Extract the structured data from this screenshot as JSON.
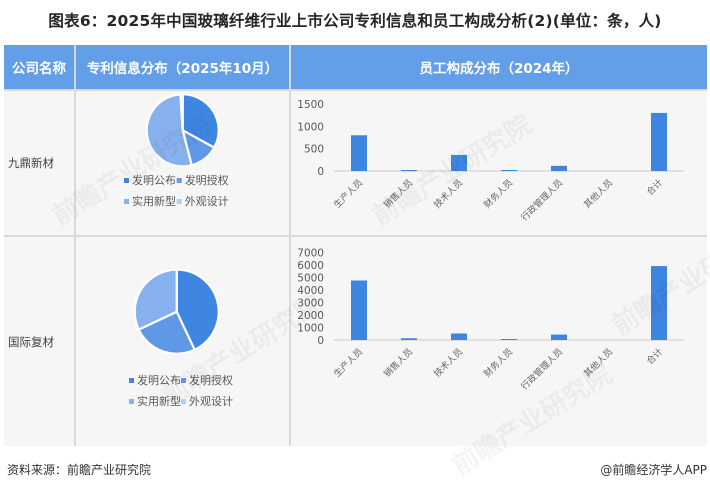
{
  "title": "图表6：2025年中国玻璃纤维行业上市公司专利信息和员工构成分析(2)(单位：条，人)",
  "table": {
    "headers": [
      "公司名称",
      "专利信息分布（2025年10月）",
      "员工构成分布（2024年）"
    ],
    "rows": [
      {
        "company": "九鼎新材"
      },
      {
        "company": "国际复材"
      }
    ]
  },
  "footer": {
    "source": "资料来源：前瞻产业研究院",
    "credit": "@前瞻经济学人APP"
  },
  "watermark": "前瞻产业研究院",
  "colors": {
    "header_bg": "#639ee8",
    "bar": "#3d85e0",
    "pie": [
      "#3f86e3",
      "#5e98e6",
      "#86b1ee",
      "#b3cff5"
    ],
    "axis": "#d9d9d9"
  },
  "chart_data": [
    {
      "type": "pie",
      "title": "九鼎新材 专利信息分布（2025年10月）",
      "categories": [
        "发明公布",
        "发明授权",
        "实用新型",
        "外观设计"
      ],
      "values": [
        33,
        13,
        53,
        1
      ],
      "legend_position": "bottom"
    },
    {
      "type": "bar",
      "title": "九鼎新材 员工构成分布（2024年）",
      "categories": [
        "生产人员",
        "销售人员",
        "技术人员",
        "财务人员",
        "行政管理人员",
        "其他人员",
        "合计"
      ],
      "values": [
        800,
        10,
        360,
        15,
        115,
        0,
        1300
      ],
      "xlabel": "",
      "ylabel": "",
      "ylim": [
        0,
        1500
      ],
      "yticks": [
        0,
        500,
        1000,
        1500
      ],
      "grid": false
    },
    {
      "type": "pie",
      "title": "国际复材 专利信息分布（2025年10月）",
      "categories": [
        "发明公布",
        "发明授权",
        "实用新型",
        "外观设计"
      ],
      "values": [
        43,
        25,
        32,
        0
      ],
      "legend_position": "bottom"
    },
    {
      "type": "bar",
      "title": "国际复材 员工构成分布（2024年）",
      "categories": [
        "生产人员",
        "销售人员",
        "技术人员",
        "财务人员",
        "行政管理人员",
        "其他人员",
        "合计"
      ],
      "values": [
        4750,
        140,
        520,
        60,
        430,
        0,
        5900
      ],
      "xlabel": "",
      "ylabel": "",
      "ylim": [
        0,
        7000
      ],
      "yticks": [
        0,
        1000,
        2000,
        3000,
        4000,
        5000,
        6000,
        7000
      ],
      "grid": false
    }
  ]
}
